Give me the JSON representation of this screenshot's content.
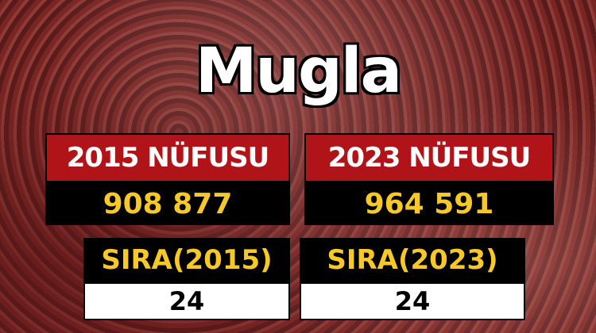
{
  "title": "Mugla",
  "population": [
    {
      "label": "2015 NÜFUSU",
      "value": "908 877"
    },
    {
      "label": "2023 NÜFUSU",
      "value": "964 591"
    }
  ],
  "rank": [
    {
      "label": "SIRA(2015)",
      "value": "24"
    },
    {
      "label": "SIRA(2023)",
      "value": "24"
    }
  ],
  "colors": {
    "red": "#b01418",
    "yellow": "#f7c928",
    "black": "#000000",
    "white": "#ffffff"
  },
  "background": "crowd-photo"
}
